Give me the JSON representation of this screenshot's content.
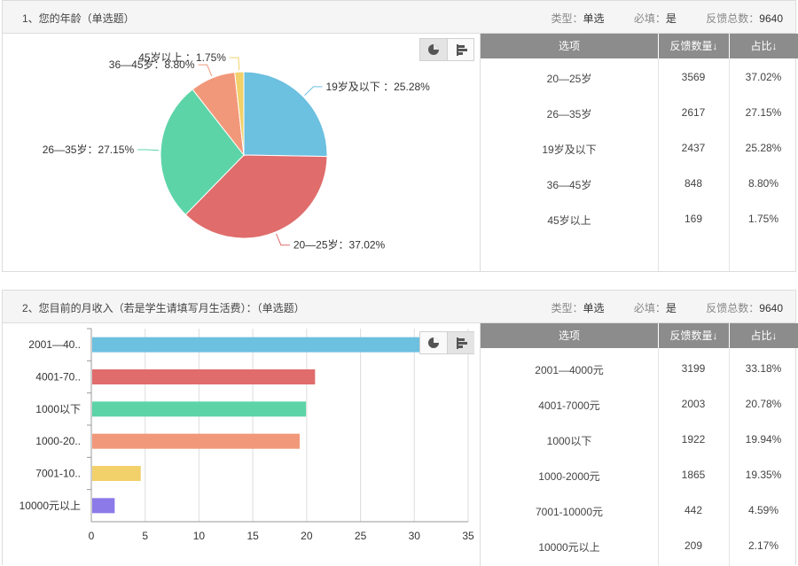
{
  "q1": {
    "title": "1、您的年龄（单选题）",
    "type_label": "类型：",
    "type_value": "单选",
    "required_label": "必填：",
    "required_value": "是",
    "total_label": "反馈总数：",
    "total_value": "9640",
    "table": {
      "headers": [
        "选项",
        "反馈数量↓",
        "占比↓"
      ],
      "rows": [
        [
          "20—25岁",
          "3569",
          "37.02%"
        ],
        [
          "26—35岁",
          "2617",
          "27.15%"
        ],
        [
          "19岁及以下",
          "2437",
          "25.28%"
        ],
        [
          "36—45岁",
          "848",
          "8.80%"
        ],
        [
          "45岁以上",
          "169",
          "1.75%"
        ]
      ]
    }
  },
  "q2": {
    "title": "2、您目前的月收入（若是学生请填写月生活费）：（单选题）",
    "type_label": "类型：",
    "type_value": "单选",
    "required_label": "必填：",
    "required_value": "是",
    "total_label": "反馈总数：",
    "total_value": "9640",
    "table": {
      "headers": [
        "选项",
        "反馈数量↓",
        "占比↓"
      ],
      "rows": [
        [
          "2001—4000元",
          "3199",
          "33.18%"
        ],
        [
          "4001-7000元",
          "2003",
          "20.78%"
        ],
        [
          "1000以下",
          "1922",
          "19.94%"
        ],
        [
          "1000-2000元",
          "1865",
          "19.35%"
        ],
        [
          "7001-10000元",
          "442",
          "4.59%"
        ],
        [
          "10000元以上",
          "209",
          "2.17%"
        ]
      ]
    }
  },
  "chart_data": [
    {
      "type": "pie",
      "slices": [
        {
          "label": "19岁及以下",
          "text": "19岁及以下 ：25.28%",
          "value": 25.28,
          "color": "#6cc0e0"
        },
        {
          "label": "20—25岁",
          "text": "20—25岁：37.02%",
          "value": 37.02,
          "color": "#e06c6c"
        },
        {
          "label": "26—35岁",
          "text": "26—35岁：27.15%",
          "value": 27.15,
          "color": "#5cd4a8"
        },
        {
          "label": "36—45岁",
          "text": "36—45岁：8.80%",
          "value": 8.8,
          "color": "#f2987a"
        },
        {
          "label": "45岁以上",
          "text": "45岁以上 ：1.75%",
          "value": 1.75,
          "color": "#f2d06a"
        }
      ]
    },
    {
      "type": "bar",
      "orientation": "horizontal",
      "categories": [
        "2001—40..",
        "4001-70..",
        "1000以下",
        "1000-20..",
        "7001-10..",
        "10000元以上"
      ],
      "values": [
        33.18,
        20.78,
        19.94,
        19.35,
        4.59,
        2.17
      ],
      "colors": [
        "#6cc0e0",
        "#e06c6c",
        "#5cd4a8",
        "#f2987a",
        "#f2d06a",
        "#8c7ae8"
      ],
      "xlim": [
        0,
        35
      ],
      "xticks": [
        "0",
        "5",
        "10",
        "15",
        "20",
        "25",
        "30",
        "35"
      ],
      "grid": true
    }
  ]
}
